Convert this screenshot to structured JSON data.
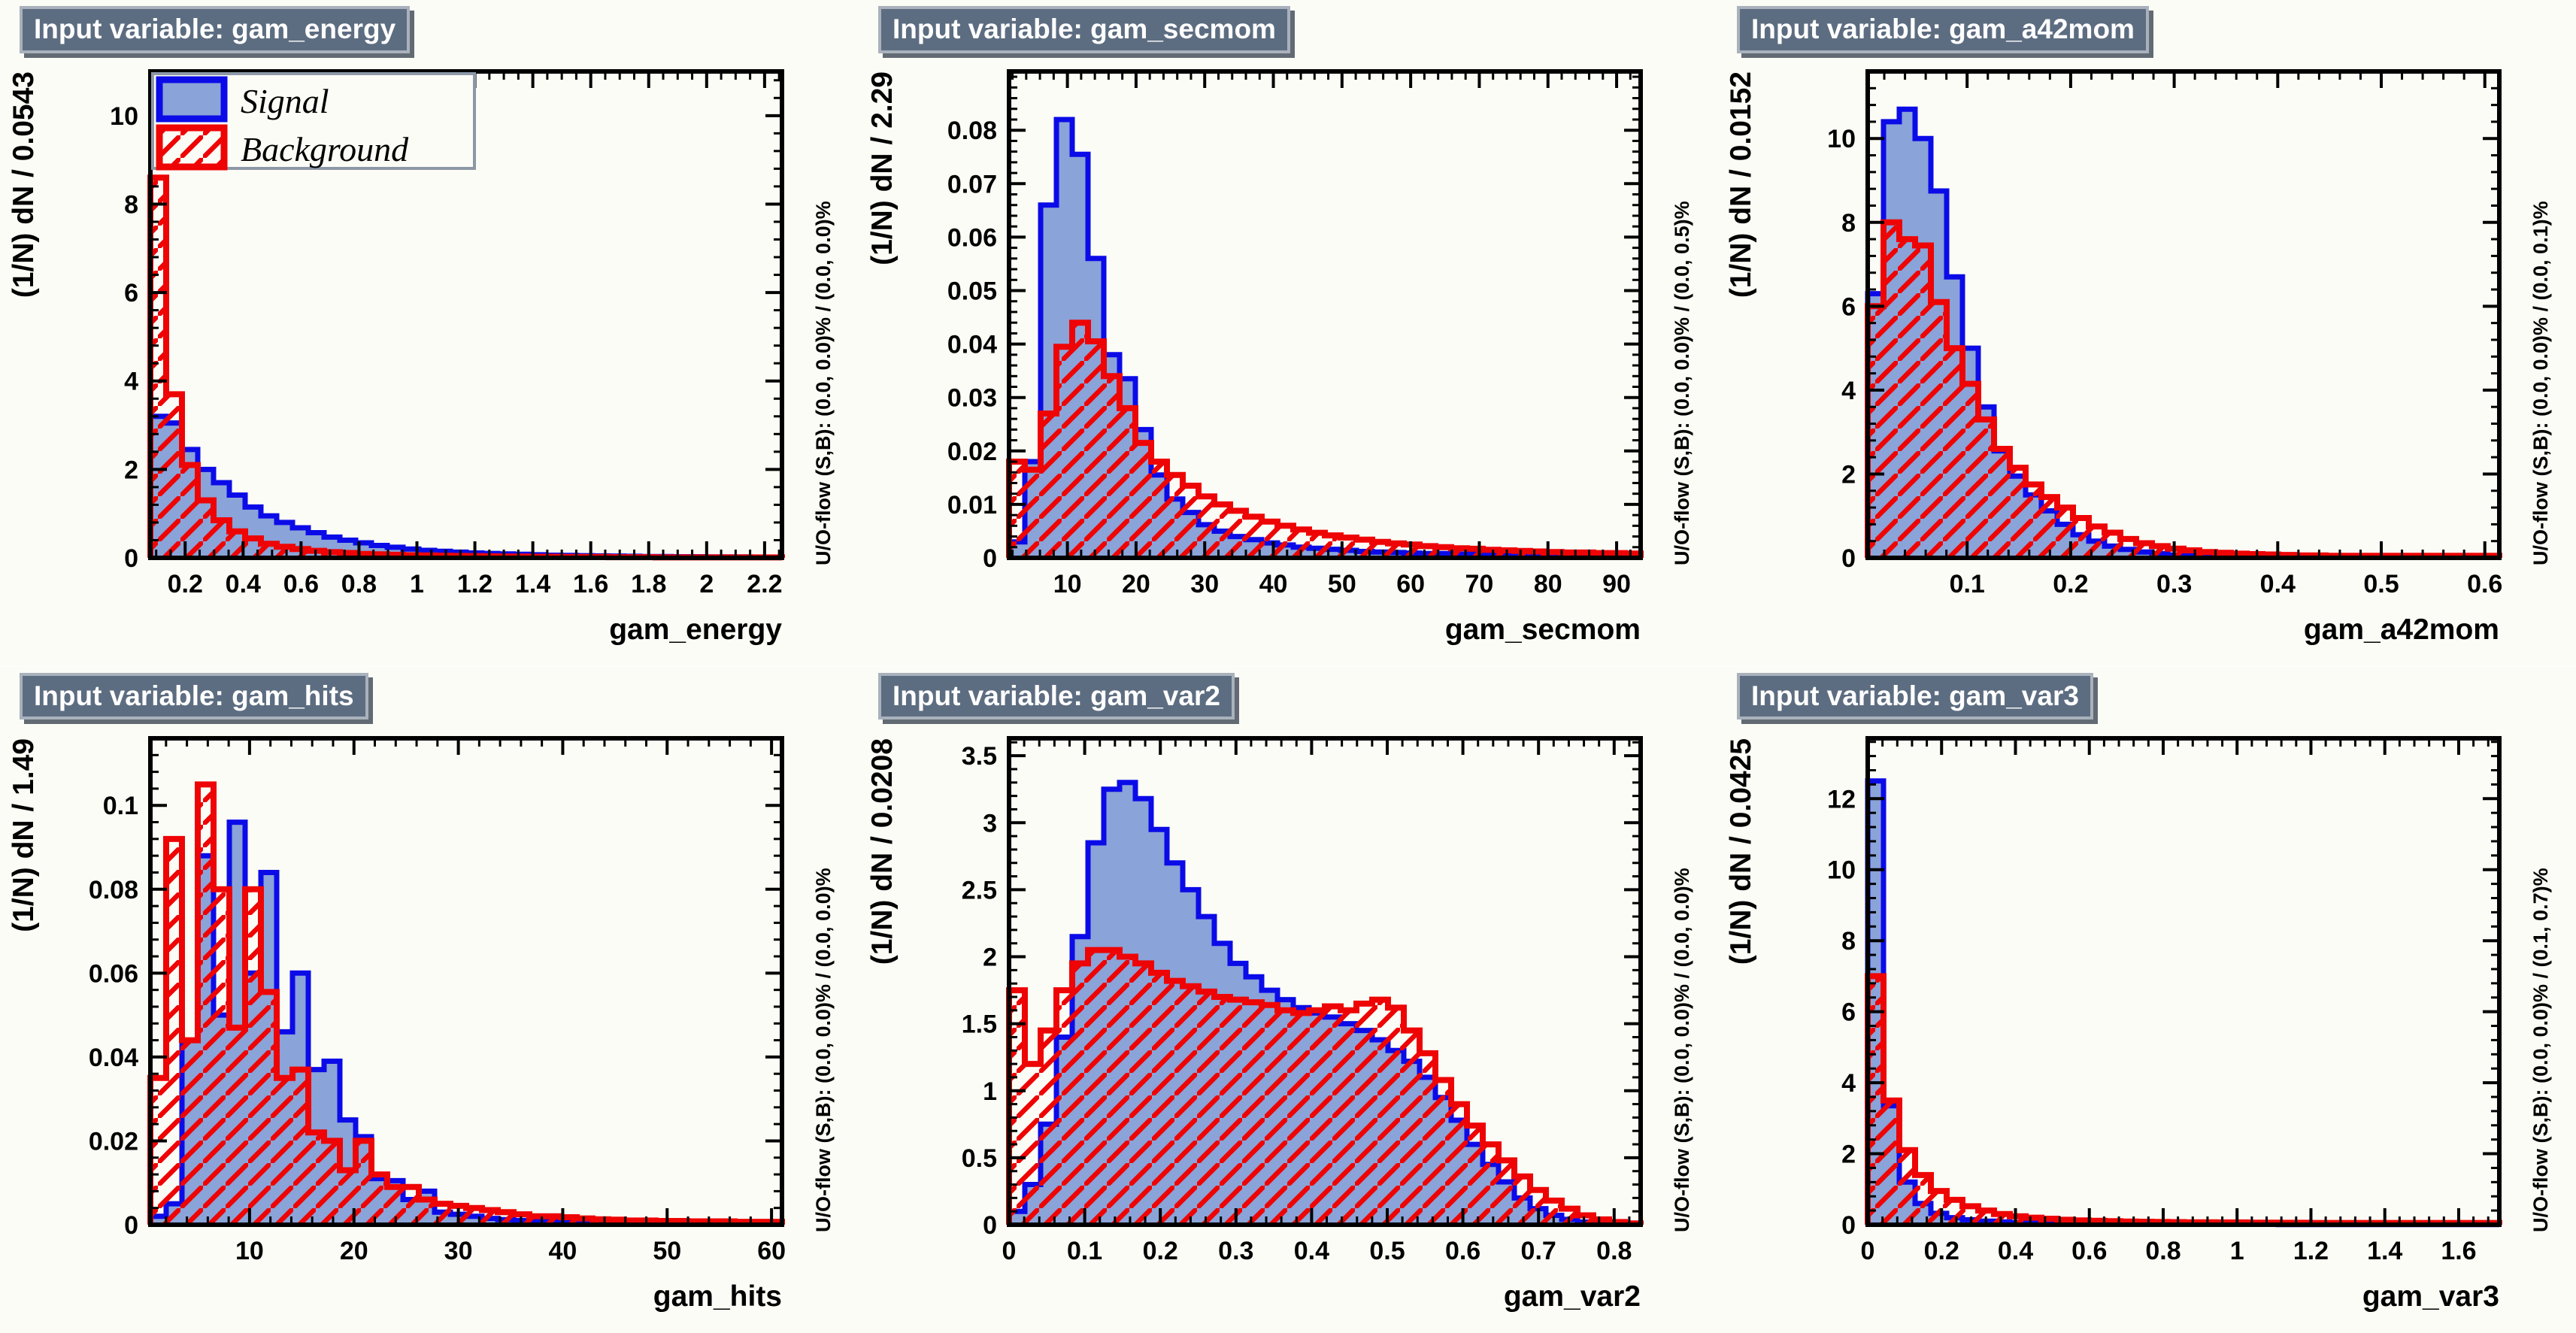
{
  "legend": {
    "signal_label": "Signal",
    "background_label": "Background"
  },
  "colors": {
    "signal_fill": "#8aa3d8",
    "signal_line": "#0b0be8",
    "background_line": "#ee0404",
    "badge_bg": "#5d6d81",
    "frame_bg": "#fcfcf6"
  },
  "chart_data": [
    {
      "type": "histogram",
      "title": "Input variable: gam_energy",
      "ylabel": "(1/N) dN / 0.0543",
      "xlabel": "gam_energy",
      "uoflow": "U/O-flow (S,B): (0.0, 0.0)% / (0.0, 0.0)%",
      "xmin": 0.08,
      "xmax": 2.26,
      "ymax": 11.0,
      "xtick_values": [
        0.2,
        0.4,
        0.6,
        0.8,
        1,
        1.2,
        1.4,
        1.6,
        1.8,
        2,
        2.2
      ],
      "xtick_labels": [
        "0.2",
        "0.4",
        "0.6",
        "0.8",
        "1",
        "1.2",
        "1.4",
        "1.6",
        "1.8",
        "2",
        "2.2"
      ],
      "ytick_values": [
        0,
        2,
        4,
        6,
        8,
        10
      ],
      "ytick_labels": [
        "0",
        "2",
        "4",
        "6",
        "8",
        "10"
      ],
      "x_minor": 0.05,
      "y_minor": 0.4,
      "series": [
        {
          "name": "Signal",
          "values": [
            3.2,
            3.05,
            2.45,
            2.0,
            1.7,
            1.42,
            1.15,
            0.95,
            0.8,
            0.68,
            0.57,
            0.47,
            0.4,
            0.34,
            0.28,
            0.24,
            0.2,
            0.17,
            0.15,
            0.13,
            0.11,
            0.1,
            0.09,
            0.08,
            0.07,
            0.06,
            0.055,
            0.05,
            0.045,
            0.04,
            0.035,
            0.03,
            0.03,
            0.025,
            0.025,
            0.02,
            0.02,
            0.02,
            0.015,
            0.015
          ]
        },
        {
          "name": "Background",
          "values": [
            8.6,
            3.7,
            2.1,
            1.3,
            0.85,
            0.6,
            0.44,
            0.32,
            0.25,
            0.2,
            0.16,
            0.13,
            0.11,
            0.09,
            0.08,
            0.07,
            0.06,
            0.055,
            0.05,
            0.045,
            0.04,
            0.035,
            0.03,
            0.03,
            0.025,
            0.025,
            0.02,
            0.02,
            0.02,
            0.015,
            0.015,
            0.015,
            0.01,
            0.01,
            0.01,
            0.01,
            0.01,
            0.01,
            0.01,
            0.01
          ]
        }
      ]
    },
    {
      "type": "histogram",
      "title": "Input variable: gam_secmom",
      "ylabel": "(1/N) dN / 2.29",
      "xlabel": "gam_secmom",
      "uoflow": "U/O-flow (S,B): (0.0, 0.0)% / (0.0, 0.5)%",
      "xmin": 1.5,
      "xmax": 93.5,
      "ymax": 0.091,
      "xtick_values": [
        10,
        20,
        30,
        40,
        50,
        60,
        70,
        80,
        90
      ],
      "xtick_labels": [
        "10",
        "20",
        "30",
        "40",
        "50",
        "60",
        "70",
        "80",
        "90"
      ],
      "ytick_values": [
        0,
        0.01,
        0.02,
        0.03,
        0.04,
        0.05,
        0.06,
        0.07,
        0.08
      ],
      "ytick_labels": [
        "0",
        "0.01",
        "0.02",
        "0.03",
        "0.04",
        "0.05",
        "0.06",
        "0.07",
        "0.08"
      ],
      "x_minor": 2,
      "y_minor": 0.002,
      "series": [
        {
          "name": "Signal",
          "values": [
            0.003,
            0.018,
            0.066,
            0.082,
            0.0755,
            0.056,
            0.038,
            0.0335,
            0.024,
            0.0155,
            0.011,
            0.0085,
            0.0062,
            0.005,
            0.004,
            0.0034,
            0.0028,
            0.0024,
            0.002,
            0.0018,
            0.0016,
            0.0014,
            0.0012,
            0.0011,
            0.001,
            0.0009,
            0.0008,
            0.0008,
            0.0007,
            0.0007,
            0.0006,
            0.0006,
            0.0005,
            0.0005,
            0.0005,
            0.0004,
            0.0004,
            0.0004,
            0.0003,
            0.0003
          ]
        },
        {
          "name": "Background",
          "values": [
            0.018,
            0.0165,
            0.027,
            0.0395,
            0.044,
            0.0405,
            0.034,
            0.028,
            0.0215,
            0.018,
            0.0155,
            0.0135,
            0.0115,
            0.01,
            0.0088,
            0.0077,
            0.0068,
            0.006,
            0.0053,
            0.0047,
            0.0042,
            0.0038,
            0.0034,
            0.003,
            0.0027,
            0.0025,
            0.0022,
            0.002,
            0.0018,
            0.0017,
            0.0015,
            0.0014,
            0.0013,
            0.0012,
            0.0011,
            0.001,
            0.001,
            0.0009,
            0.0009,
            0.0008
          ]
        }
      ]
    },
    {
      "type": "histogram",
      "title": "Input variable: gam_a42mom",
      "ylabel": "(1/N) dN / 0.0152",
      "xlabel": "gam_a42mom",
      "uoflow": "U/O-flow (S,B): (0.0, 0.0)% / (0.0, 0.1)%",
      "xmin": 0.004,
      "xmax": 0.614,
      "ymax": 11.6,
      "xtick_values": [
        0.1,
        0.2,
        0.3,
        0.4,
        0.5,
        0.6
      ],
      "xtick_labels": [
        "0.1",
        "0.2",
        "0.3",
        "0.4",
        "0.5",
        "0.6"
      ],
      "ytick_values": [
        0,
        2,
        4,
        6,
        8,
        10
      ],
      "ytick_labels": [
        "0",
        "2",
        "4",
        "6",
        "8",
        "10"
      ],
      "x_minor": 0.02,
      "y_minor": 0.4,
      "series": [
        {
          "name": "Signal",
          "values": [
            6.3,
            10.4,
            10.7,
            10.0,
            8.75,
            6.7,
            5.0,
            3.6,
            2.55,
            1.95,
            1.5,
            1.12,
            0.8,
            0.55,
            0.4,
            0.28,
            0.2,
            0.14,
            0.1,
            0.07,
            0.05,
            0.04,
            0.03,
            0.025,
            0.02,
            0.02,
            0.015,
            0.015,
            0.01,
            0.01,
            0.01,
            0.01,
            0.01,
            0.01,
            0.01,
            0.01,
            0.01,
            0.01,
            0.01,
            0.01
          ]
        },
        {
          "name": "Background",
          "values": [
            6.0,
            8.0,
            7.6,
            7.45,
            6.1,
            5.0,
            4.15,
            3.3,
            2.6,
            2.15,
            1.75,
            1.45,
            1.2,
            0.95,
            0.75,
            0.6,
            0.45,
            0.35,
            0.28,
            0.22,
            0.18,
            0.14,
            0.12,
            0.1,
            0.09,
            0.08,
            0.07,
            0.06,
            0.06,
            0.05,
            0.05,
            0.05,
            0.05,
            0.05,
            0.05,
            0.05,
            0.05,
            0.05,
            0.05,
            0.05
          ]
        }
      ]
    },
    {
      "type": "histogram",
      "title": "Input variable: gam_hits",
      "ylabel": "(1/N) dN / 1.49",
      "xlabel": "gam_hits",
      "uoflow": "U/O-flow (S,B): (0.0, 0.0)% / (0.0, 0.0)%",
      "xmin": 0.5,
      "xmax": 61,
      "ymax": 0.116,
      "xtick_values": [
        10,
        20,
        30,
        40,
        50,
        60
      ],
      "xtick_labels": [
        "10",
        "20",
        "30",
        "40",
        "50",
        "60"
      ],
      "ytick_values": [
        0,
        0.02,
        0.04,
        0.06,
        0.08,
        0.1
      ],
      "ytick_labels": [
        "0",
        "0.02",
        "0.04",
        "0.06",
        "0.08",
        "0.1"
      ],
      "x_minor": 2,
      "y_minor": 0.004,
      "series": [
        {
          "name": "Signal",
          "values": [
            0.002,
            0.005,
            0.044,
            0.088,
            0.05,
            0.096,
            0.06,
            0.084,
            0.046,
            0.06,
            0.037,
            0.039,
            0.025,
            0.021,
            0.011,
            0.0105,
            0.006,
            0.008,
            0.003,
            0.0025,
            0.002,
            0.0015,
            0.0012,
            0.001,
            0.0008,
            0.0008,
            0.0006,
            0.0006,
            0.0005,
            0.0005,
            0.0004,
            0.0004,
            0.0004,
            0.0003,
            0.0003,
            0.0003,
            0.0003,
            0.0003,
            0.0003,
            0.0003
          ]
        },
        {
          "name": "Background",
          "values": [
            0.035,
            0.092,
            0.044,
            0.105,
            0.08,
            0.047,
            0.08,
            0.0555,
            0.035,
            0.037,
            0.022,
            0.02,
            0.013,
            0.02,
            0.012,
            0.009,
            0.009,
            0.006,
            0.005,
            0.0045,
            0.004,
            0.0035,
            0.003,
            0.0025,
            0.002,
            0.002,
            0.0018,
            0.0015,
            0.0013,
            0.0012,
            0.001,
            0.001,
            0.0009,
            0.0009,
            0.0008,
            0.0008,
            0.0008,
            0.0007,
            0.0007,
            0.0007
          ]
        }
      ]
    },
    {
      "type": "histogram",
      "title": "Input variable: gam_var2",
      "ylabel": "(1/N) dN / 0.0208",
      "xlabel": "gam_var2",
      "uoflow": "U/O-flow (S,B): (0.0, 0.0)% / (0.0, 0.0)%",
      "xmin": 0,
      "xmax": 0.835,
      "ymax": 3.63,
      "xtick_values": [
        0,
        0.1,
        0.2,
        0.3,
        0.4,
        0.5,
        0.6,
        0.7,
        0.8
      ],
      "xtick_labels": [
        "0",
        "0.1",
        "0.2",
        "0.3",
        "0.4",
        "0.5",
        "0.6",
        "0.7",
        "0.8"
      ],
      "ytick_values": [
        0,
        0.5,
        1,
        1.5,
        2,
        2.5,
        3,
        3.5
      ],
      "ytick_labels": [
        "0",
        "0.5",
        "1",
        "1.5",
        "2",
        "2.5",
        "3",
        "3.5"
      ],
      "x_minor": 0.02,
      "y_minor": 0.1,
      "series": [
        {
          "name": "Signal",
          "values": [
            0.1,
            0.3,
            0.75,
            1.4,
            2.15,
            2.85,
            3.25,
            3.3,
            3.18,
            2.95,
            2.7,
            2.5,
            2.3,
            2.1,
            1.95,
            1.85,
            1.75,
            1.68,
            1.62,
            1.58,
            1.55,
            1.5,
            1.45,
            1.38,
            1.3,
            1.22,
            1.1,
            0.95,
            0.78,
            0.6,
            0.45,
            0.32,
            0.2,
            0.12,
            0.07,
            0.04,
            0.02,
            0.01,
            0.005,
            0.003
          ]
        },
        {
          "name": "Background",
          "values": [
            1.75,
            1.2,
            1.45,
            1.75,
            1.95,
            2.05,
            2.05,
            2.0,
            1.95,
            1.88,
            1.82,
            1.78,
            1.74,
            1.7,
            1.68,
            1.66,
            1.64,
            1.6,
            1.58,
            1.6,
            1.63,
            1.6,
            1.65,
            1.68,
            1.62,
            1.45,
            1.28,
            1.08,
            0.9,
            0.74,
            0.6,
            0.48,
            0.36,
            0.26,
            0.18,
            0.12,
            0.07,
            0.04,
            0.02,
            0.01
          ]
        }
      ]
    },
    {
      "type": "histogram",
      "title": "Input variable: gam_var3",
      "ylabel": "(1/N) dN / 0.0425",
      "xlabel": "gam_var3",
      "uoflow": "U/O-flow (S,B): (0.0, 0.0)% / (0.1, 0.7)%",
      "xmin": 0,
      "xmax": 1.71,
      "ymax": 13.7,
      "xtick_values": [
        0,
        0.2,
        0.4,
        0.6,
        0.8,
        1,
        1.2,
        1.4,
        1.6
      ],
      "xtick_labels": [
        "0",
        "0.2",
        "0.4",
        "0.6",
        "0.8",
        "1",
        "1.2",
        "1.4",
        "1.6"
      ],
      "ytick_values": [
        0,
        2,
        4,
        6,
        8,
        10,
        12
      ],
      "ytick_labels": [
        "0",
        "2",
        "4",
        "6",
        "8",
        "10",
        "12"
      ],
      "x_minor": 0.04,
      "y_minor": 0.4,
      "series": [
        {
          "name": "Signal",
          "values": [
            12.5,
            3.35,
            1.2,
            0.6,
            0.32,
            0.2,
            0.14,
            0.1,
            0.08,
            0.06,
            0.05,
            0.04,
            0.035,
            0.03,
            0.025,
            0.02,
            0.02,
            0.015,
            0.015,
            0.01,
            0.01,
            0.01,
            0.01,
            0.01,
            0.01,
            0.01,
            0.005,
            0.005,
            0.005,
            0.005,
            0.005,
            0.005,
            0.005,
            0.005,
            0.005,
            0.005,
            0.005,
            0.005,
            0.005,
            0.005
          ]
        },
        {
          "name": "Background",
          "values": [
            7.0,
            3.5,
            2.1,
            1.4,
            0.95,
            0.7,
            0.52,
            0.4,
            0.3,
            0.24,
            0.2,
            0.17,
            0.14,
            0.12,
            0.11,
            0.1,
            0.09,
            0.085,
            0.08,
            0.075,
            0.07,
            0.07,
            0.065,
            0.065,
            0.06,
            0.06,
            0.055,
            0.055,
            0.05,
            0.05,
            0.05,
            0.05,
            0.05,
            0.05,
            0.05,
            0.05,
            0.05,
            0.05,
            0.05,
            0.05
          ]
        }
      ]
    }
  ]
}
